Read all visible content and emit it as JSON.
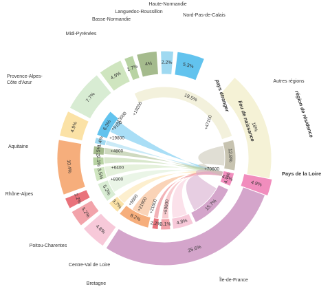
{
  "chart_data": {
    "type": "chord",
    "side_labels": {
      "residence": "région de résidence",
      "birthplace": "lieu de naissance",
      "abroad": "pays étranger"
    },
    "focus_region": {
      "name": "Pays de la Loire",
      "outer_pct": "4.9%",
      "inner_pct": "4.7%"
    },
    "outer_ring": [
      {
        "name": "Autres régions",
        "pct": "18%",
        "color": "#f5f2d6"
      },
      {
        "name": "Île-de-France",
        "pct": "25.6%",
        "color": "#d4a5cb"
      },
      {
        "name": "Bretagne",
        "pct": "4.8%",
        "color": "#f7c9d9"
      },
      {
        "name": "Centre-Val de Loire",
        "pct": "3.2%",
        "color": "#f2a3aa"
      },
      {
        "name": "Poitou-Charentes",
        "pct": "2.2%",
        "color": "#e9727b"
      },
      {
        "name": "Rhône-Alpes",
        "pct": "10.4%",
        "color": "#f6ae7c"
      },
      {
        "name": "Aquitaine",
        "pct": "4.9%",
        "color": "#fbe2a6"
      },
      {
        "name": "Provence-Alpes-Côte d'Azur",
        "pct": "7.7%",
        "color": "#d8ecd3"
      },
      {
        "name": "Midi-Pyrénées",
        "pct": "4.9%",
        "color": "#cfe5bf"
      },
      {
        "name": "Basse-Normandie",
        "pct": "1.7%",
        "color": "#b8d3a3"
      },
      {
        "name": "Languedoc-Roussillon",
        "pct": "4%",
        "color": "#a5bb8d"
      },
      {
        "name": "Haute-Normandie",
        "pct": "2.2%",
        "color": "#9fd9f1"
      },
      {
        "name": "Nord-Pas-de-Calais",
        "pct": "5.3%",
        "color": "#62c3ee"
      }
    ],
    "inner_ring": [
      {
        "pct": "19.5%",
        "color": "#f3f1dc"
      },
      {
        "pct": "12.8%",
        "color": "#c7c3b0"
      },
      {
        "pct": "4.7%",
        "color": "#f18dbd"
      },
      {
        "pct": "15.7%",
        "color": "#d4a5cb"
      },
      {
        "pct": "4.8%",
        "color": "#f7c9d9"
      },
      {
        "pct": "3.1%",
        "color": "#f2a3aa"
      },
      {
        "pct": "2.2%",
        "color": "#e9727b"
      },
      {
        "pct": "8.2%",
        "color": "#f6ae7c"
      },
      {
        "pct": "3.7%",
        "color": "#fbe2a6"
      },
      {
        "pct": "5.2%",
        "color": "#d8ecd3"
      },
      {
        "pct": "3.5%",
        "color": "#cfe5bf"
      },
      {
        "pct": "2.1%",
        "color": "#b8d3a3"
      },
      {
        "pct": "2.5%",
        "color": "#a5bb8d"
      },
      {
        "pct": "1.4%",
        "color": "#9fd9f1"
      },
      {
        "pct": "6.3%",
        "color": "#62c3ee"
      }
    ],
    "flows": [
      {
        "label": "+19200",
        "color": "#62c3ee"
      },
      {
        "label": "+13000",
        "color": "#9fd9f1"
      },
      {
        "label": "+9100",
        "color": "#a5bb8d"
      },
      {
        "label": "+19800",
        "color": "#b8d3a3"
      },
      {
        "label": "+4800",
        "color": "#cfe5bf"
      },
      {
        "label": "+6400",
        "color": "#d8ecd3"
      },
      {
        "label": "+8300",
        "color": "#fbe2a6"
      },
      {
        "label": "+9600",
        "color": "#f6ae7c"
      },
      {
        "label": "+21900",
        "color": "#e9727b"
      },
      {
        "label": "+21600",
        "color": "#f2a3aa"
      },
      {
        "label": "+59600",
        "color": "#f7c9d9"
      },
      {
        "label": "+70600",
        "color": "#d4a5cb"
      },
      {
        "label": "+47100",
        "color": "#c7c3b0"
      }
    ]
  }
}
